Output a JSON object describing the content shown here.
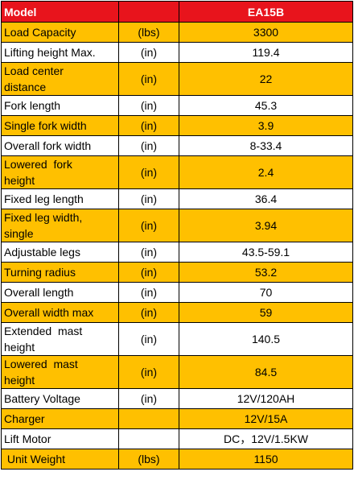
{
  "table": {
    "header": [
      "Model",
      "EA15B"
    ],
    "rows": [
      {
        "label": [
          "Load Capacity"
        ],
        "unit": "(lbs)",
        "value": "3300"
      },
      {
        "label": [
          "Lifting height Max."
        ],
        "unit": "(in)",
        "value": "119.4"
      },
      {
        "label": [
          "Load center",
          "distance"
        ],
        "unit": "(in)",
        "value": "22"
      },
      {
        "label": [
          "Fork length"
        ],
        "unit": "(in)",
        "value": "45.3"
      },
      {
        "label": [
          "Single fork width"
        ],
        "unit": "(in)",
        "value": "3.9"
      },
      {
        "label": [
          "Overall fork width"
        ],
        "unit": "(in)",
        "value": "8-33.4"
      },
      {
        "label": [
          "Lowered  fork",
          "height"
        ],
        "unit": "(in)",
        "value": "2.4"
      },
      {
        "label": [
          "Fixed leg length"
        ],
        "unit": "(in)",
        "value": "36.4"
      },
      {
        "label": [
          "Fixed leg width,",
          "single"
        ],
        "unit": "(in)",
        "value": "3.94"
      },
      {
        "label": [
          "Adjustable legs"
        ],
        "unit": "(in)",
        "value": "43.5-59.1"
      },
      {
        "label": [
          "Turning radius"
        ],
        "unit": "(in)",
        "value": "53.2"
      },
      {
        "label": [
          "Overall length"
        ],
        "unit": "(in)",
        "value": "70"
      },
      {
        "label": [
          "Overall width max"
        ],
        "unit": "(in)",
        "value": "59"
      },
      {
        "label": [
          "Extended  mast",
          "height"
        ],
        "unit": "(in)",
        "value": "140.5"
      },
      {
        "label": [
          "Lowered  mast",
          "height"
        ],
        "unit": "(in)",
        "value": "84.5"
      },
      {
        "label": [
          "Battery Voltage"
        ],
        "unit": "(in)",
        "value": "12V/120AH"
      },
      {
        "label": [
          "Charger"
        ],
        "value": "12V/15A"
      },
      {
        "label": [
          "Lift Motor"
        ],
        "value": "DC，12V/1.5KW"
      },
      {
        "label": [
          " Unit Weight"
        ],
        "unit": "(lbs)",
        "value": "1150"
      }
    ]
  }
}
